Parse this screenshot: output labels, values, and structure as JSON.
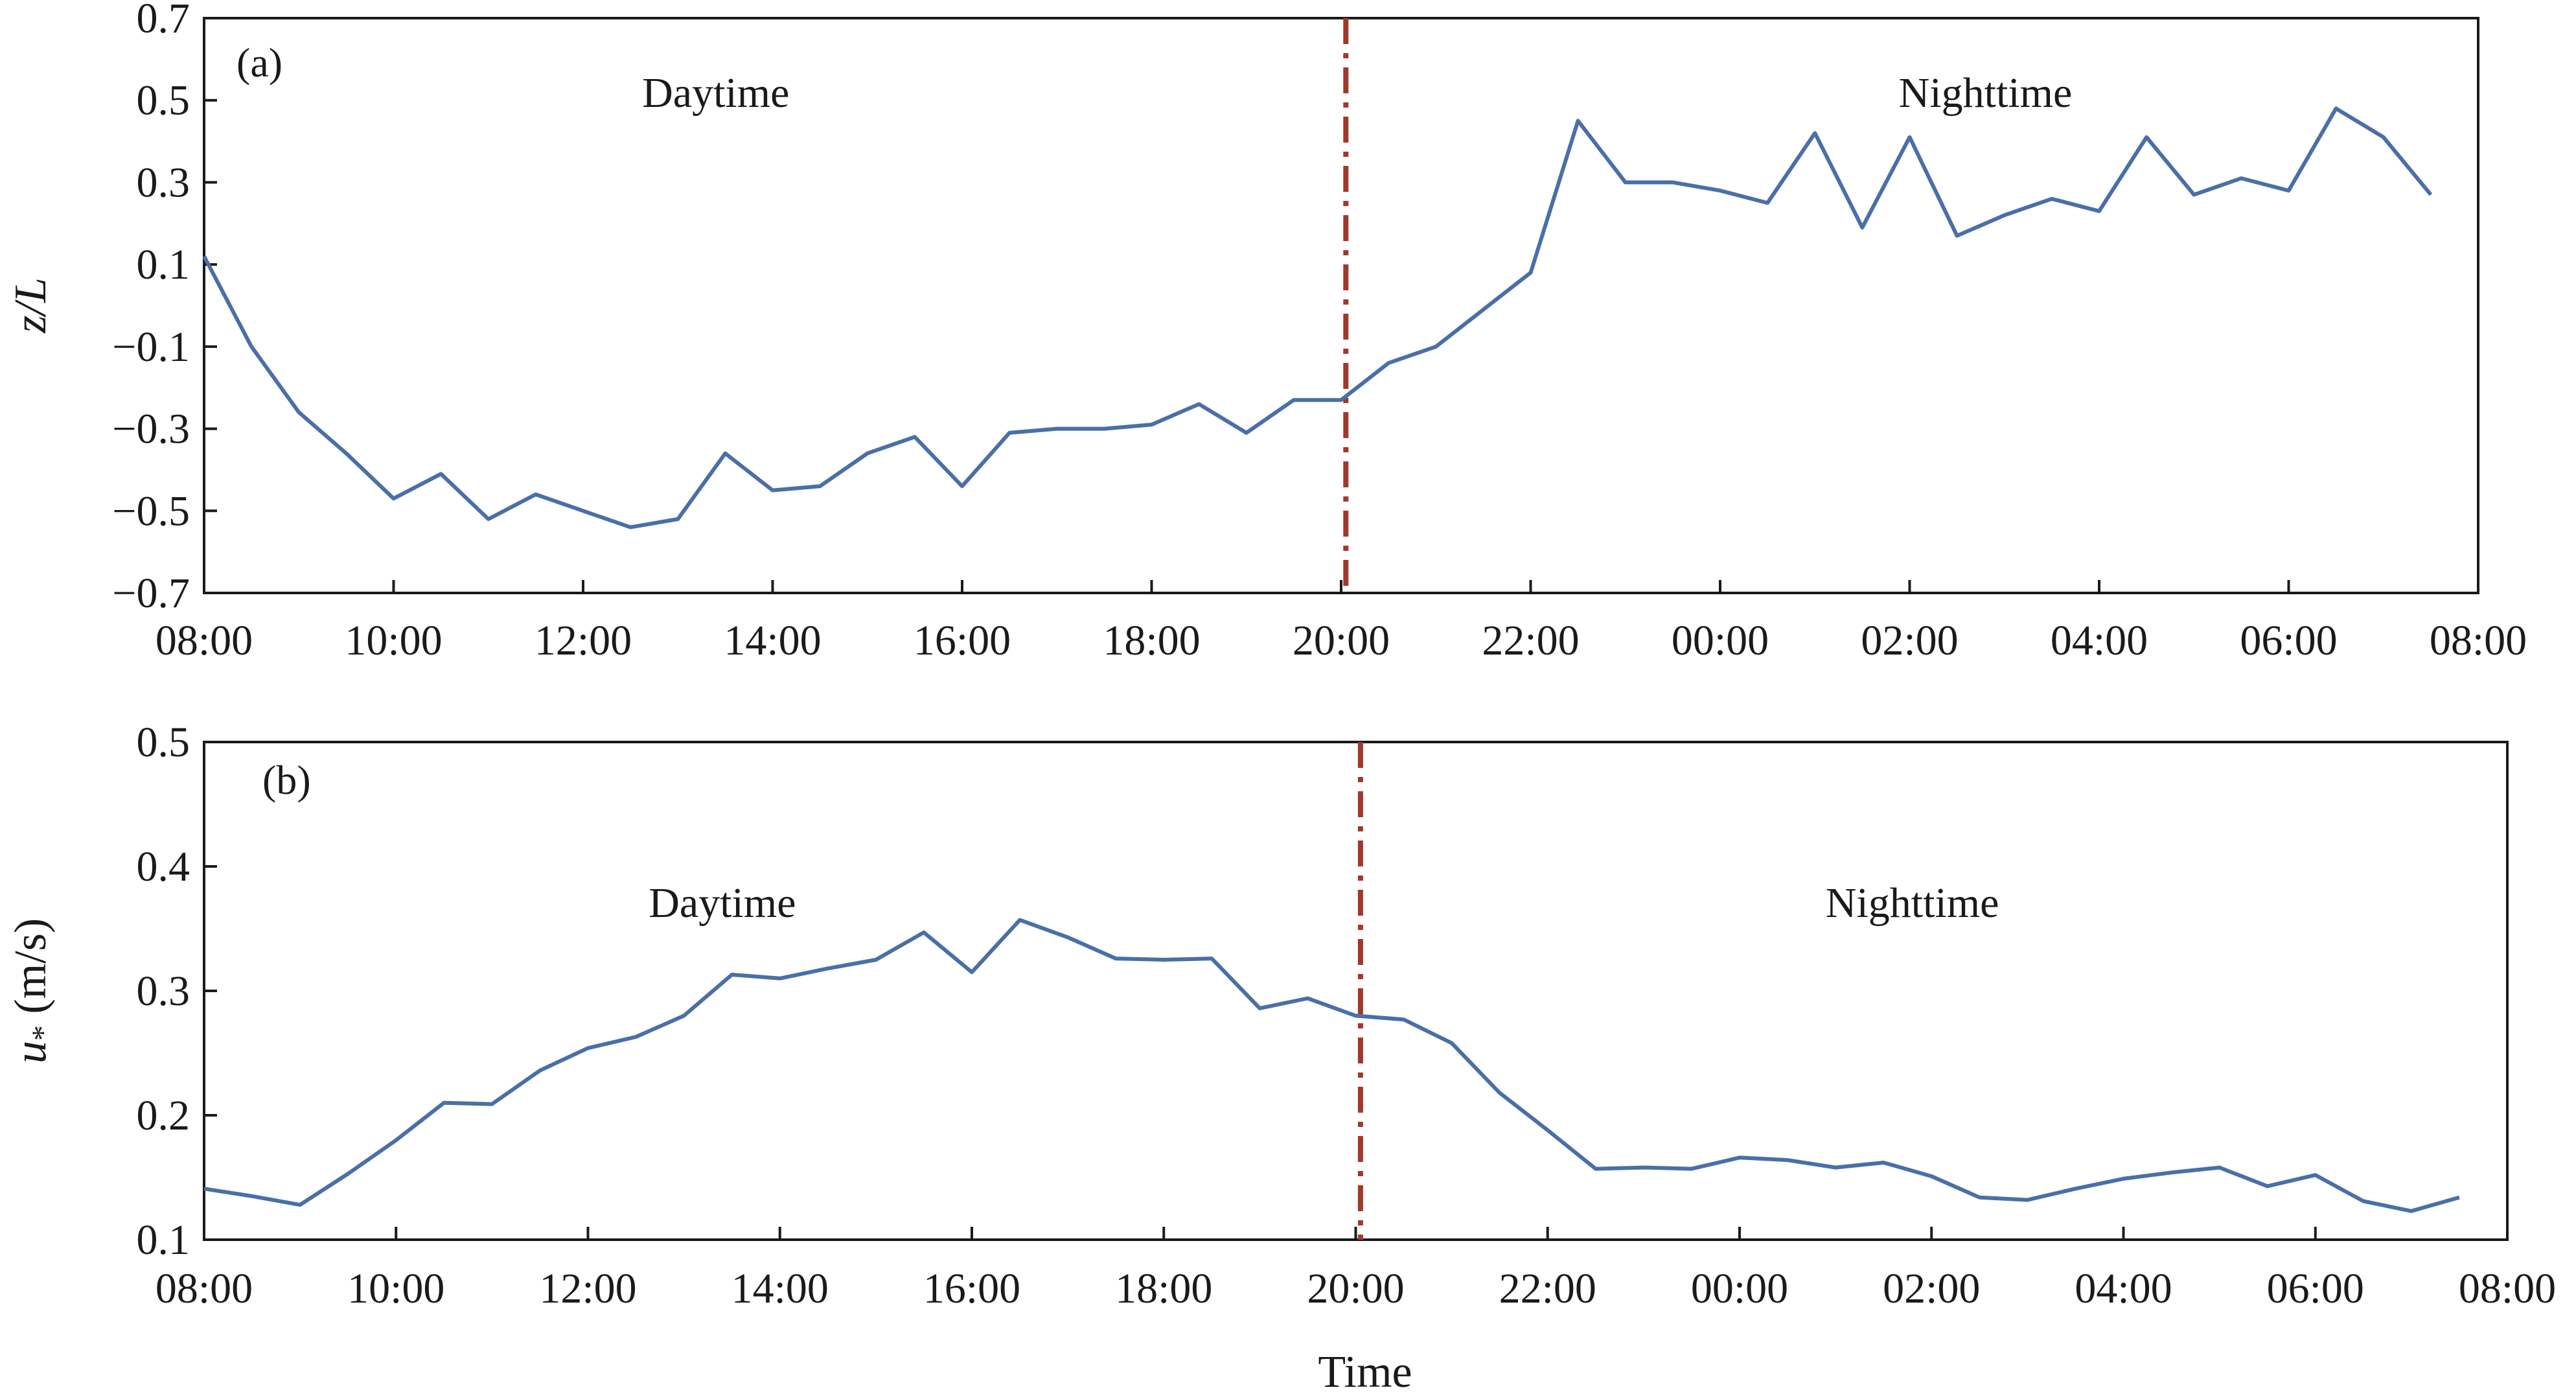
{
  "chart_data": [
    {
      "type": "line",
      "panel_label": "(a)",
      "ylabel": "z/L",
      "xlabel": "",
      "ylim": [
        -0.7,
        0.7
      ],
      "yticks": [
        "0.7",
        "0.5",
        "0.3",
        "0.1",
        "−0.1",
        "−0.3",
        "−0.5",
        "−0.7"
      ],
      "ytick_values": [
        0.7,
        0.5,
        0.3,
        0.1,
        -0.1,
        -0.3,
        -0.5,
        -0.7
      ],
      "xticks": [
        "08:00",
        "10:00",
        "12:00",
        "14:00",
        "16:00",
        "18:00",
        "20:00",
        "22:00",
        "00:00",
        "02:00",
        "04:00",
        "06:00",
        "08:00"
      ],
      "xlim_hours": [
        0,
        24
      ],
      "divider_hour": 12.05,
      "regions": [
        {
          "label": "Daytime",
          "hour": 5.4
        },
        {
          "label": "Nighttime",
          "hour": 18.8
        }
      ],
      "series": [
        {
          "x_hours": [
            0,
            0.5,
            1,
            1.5,
            2,
            2.5,
            3,
            3.5,
            4,
            4.5,
            5,
            5.5,
            6,
            6.5,
            7,
            7.5,
            8,
            8.5,
            9,
            9.5,
            10,
            10.5,
            11,
            11.5,
            12,
            12.5,
            13,
            13.5,
            14,
            14.5,
            15,
            15.5,
            16,
            16.5,
            17,
            17.5,
            18,
            18.5,
            19,
            19.5,
            20,
            20.5,
            21,
            21.5,
            22,
            22.5,
            23,
            23.5
          ],
          "values": [
            0.12,
            -0.1,
            -0.26,
            -0.36,
            -0.47,
            -0.41,
            -0.52,
            -0.46,
            -0.5,
            -0.54,
            -0.52,
            -0.36,
            -0.45,
            -0.44,
            -0.36,
            -0.32,
            -0.44,
            -0.31,
            -0.3,
            -0.3,
            -0.29,
            -0.24,
            -0.31,
            -0.23,
            -0.23,
            -0.14,
            -0.1,
            -0.01,
            0.08,
            0.45,
            0.3,
            0.3,
            0.28,
            0.25,
            0.42,
            0.19,
            0.41,
            0.17,
            0.22,
            0.26,
            0.23,
            0.41,
            0.27,
            0.31,
            0.28,
            0.48,
            0.41,
            0.27
          ]
        }
      ]
    },
    {
      "type": "line",
      "panel_label": "(b)",
      "ylabel": "u* (m/s)",
      "xlabel": "Time",
      "ylim": [
        0.1,
        0.5
      ],
      "yticks": [
        "0.5",
        "0.4",
        "0.3",
        "0.2",
        "0.1"
      ],
      "ytick_values": [
        0.5,
        0.4,
        0.3,
        0.2,
        0.1
      ],
      "xticks": [
        "08:00",
        "10:00",
        "12:00",
        "14:00",
        "16:00",
        "18:00",
        "20:00",
        "22:00",
        "00:00",
        "02:00",
        "04:00",
        "06:00",
        "08:00"
      ],
      "xlim_hours": [
        0,
        24
      ],
      "divider_hour": 12.05,
      "regions": [
        {
          "label": "Daytime",
          "hour": 5.4
        },
        {
          "label": "Nighttime",
          "hour": 17.8
        }
      ],
      "series": [
        {
          "x_hours": [
            0,
            0.5,
            1,
            1.5,
            2,
            2.5,
            3,
            3.5,
            4,
            4.5,
            5,
            5.5,
            6,
            6.5,
            7,
            7.5,
            8,
            8.5,
            9,
            9.5,
            10,
            10.5,
            11,
            11.5,
            12,
            12.5,
            13,
            13.5,
            14,
            14.5,
            15,
            15.5,
            16,
            16.5,
            17,
            17.5,
            18,
            18.5,
            19,
            19.5,
            20,
            20.5,
            21,
            21.5,
            22,
            22.5,
            23,
            23.5
          ],
          "values": [
            0.141,
            0.135,
            0.128,
            0.153,
            0.18,
            0.21,
            0.209,
            0.236,
            0.254,
            0.263,
            0.28,
            0.313,
            0.31,
            0.318,
            0.325,
            0.347,
            0.315,
            0.357,
            0.343,
            0.326,
            0.325,
            0.326,
            0.286,
            0.294,
            0.28,
            0.277,
            0.258,
            0.218,
            0.188,
            0.157,
            0.158,
            0.157,
            0.166,
            0.164,
            0.158,
            0.162,
            0.151,
            0.134,
            0.132,
            0.141,
            0.149,
            0.154,
            0.158,
            0.143,
            0.152,
            0.131,
            0.123,
            0.134
          ]
        }
      ]
    }
  ]
}
